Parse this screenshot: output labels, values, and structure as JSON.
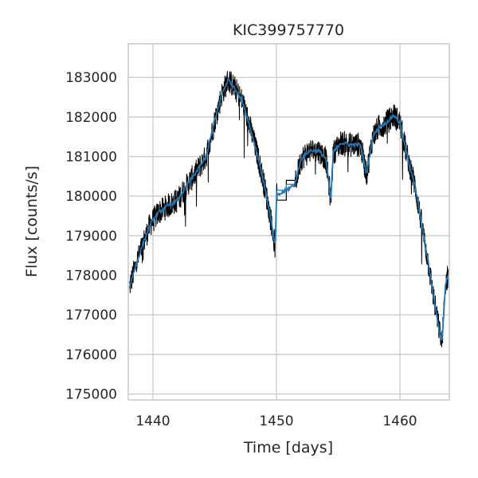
{
  "chart_data": {
    "type": "line",
    "title": "KIC399757770",
    "xlabel": "Time [days]",
    "ylabel": "Flux [counts/s]",
    "xlim": [
      1438,
      1464
    ],
    "ylim": [
      174850,
      183850
    ],
    "xticks": [
      1440,
      1450,
      1460
    ],
    "xtick_labels": [
      "1440",
      "1450",
      "1460"
    ],
    "yticks": [
      175000,
      176000,
      177000,
      178000,
      179000,
      180000,
      181000,
      182000,
      183000
    ],
    "ytick_labels": [
      "175000",
      "176000",
      "177000",
      "178000",
      "179000",
      "180000",
      "181000",
      "182000",
      "183000"
    ],
    "grid": true,
    "legend": "none",
    "colors": {
      "raw": "#000000",
      "smooth": "#1f77b4",
      "grid": "#cccccc",
      "frame": "#cccccc"
    },
    "series": [
      {
        "role": "raw-flux",
        "color": "#000000",
        "x": [
          1438.1,
          1438.6,
          1439.2,
          1439.8,
          1440.5,
          1441.2,
          1442.0,
          1442.8,
          1443.6,
          1444.3,
          1445.0,
          1445.6,
          1446.1,
          1446.7,
          1447.3,
          1447.9,
          1448.5,
          1449.0,
          1449.5,
          1449.9,
          1450.0,
          1450.8,
          1451.5,
          1452.0,
          1452.7,
          1453.4,
          1454.0,
          1454.4,
          1454.6,
          1455.2,
          1456.0,
          1456.8,
          1457.3,
          1457.8,
          1458.3,
          1458.9,
          1459.5,
          1460.0,
          1460.6,
          1461.2,
          1461.8,
          1462.3,
          1462.8,
          1463.2,
          1463.4,
          1463.7,
          1463.9
        ],
        "y": [
          177700,
          178250,
          178800,
          179300,
          179600,
          179750,
          179900,
          180300,
          180650,
          181000,
          181900,
          182600,
          182950,
          182700,
          182350,
          181700,
          181000,
          180300,
          179500,
          178700,
          180000,
          180150,
          180300,
          180950,
          181150,
          181150,
          180950,
          179900,
          181100,
          181350,
          181300,
          181300,
          180550,
          181500,
          181750,
          181850,
          182050,
          181850,
          181000,
          180300,
          179200,
          178300,
          177300,
          176600,
          176300,
          177800,
          178000
        ],
        "scatter": 320
      },
      {
        "role": "smoothed-flux",
        "color": "#1f77b4",
        "x": [
          1438.1,
          1438.6,
          1439.2,
          1439.8,
          1440.5,
          1441.2,
          1442.0,
          1442.8,
          1443.6,
          1444.3,
          1445.0,
          1445.6,
          1446.1,
          1446.7,
          1447.3,
          1447.9,
          1448.5,
          1449.0,
          1449.5,
          1449.9,
          1450.0,
          1450.8,
          1451.5,
          1452.0,
          1452.7,
          1453.4,
          1454.0,
          1454.4,
          1454.6,
          1455.2,
          1456.0,
          1456.8,
          1457.3,
          1457.8,
          1458.3,
          1458.9,
          1459.5,
          1460.0,
          1460.6,
          1461.2,
          1461.8,
          1462.3,
          1462.8,
          1463.2,
          1463.4,
          1463.7,
          1463.9
        ],
        "y": [
          177700,
          178250,
          178800,
          179300,
          179600,
          179750,
          179900,
          180300,
          180650,
          181000,
          181900,
          182600,
          182950,
          182700,
          182350,
          181700,
          181000,
          180300,
          179500,
          178700,
          180000,
          180150,
          180300,
          180950,
          181150,
          181150,
          180950,
          179900,
          181100,
          181350,
          181300,
          181300,
          180550,
          181500,
          181750,
          181850,
          182050,
          181850,
          181000,
          180300,
          179200,
          178300,
          177300,
          176600,
          176300,
          177800,
          178000
        ]
      }
    ]
  }
}
